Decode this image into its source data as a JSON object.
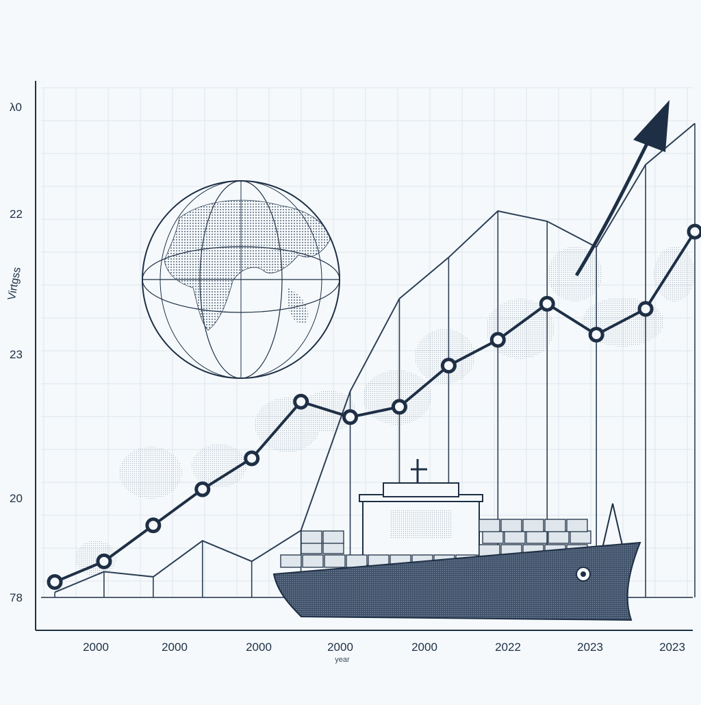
{
  "chart_data": {
    "type": "line",
    "title": "",
    "xlabel": "year",
    "ylabel": "Virtgss",
    "y_tick_labels": [
      "λ0",
      "22",
      "23",
      "20",
      "78"
    ],
    "x_tick_labels": [
      "2000",
      "2000",
      "2000",
      "2000",
      "2000",
      "2022",
      "2023",
      "2023"
    ],
    "grid": true,
    "legend": "none",
    "x": [
      1,
      2,
      3,
      4,
      5,
      6,
      7,
      8,
      9,
      10,
      11,
      12,
      13,
      14
    ],
    "ylim": [
      0,
      100
    ],
    "series": [
      {
        "values": [
          3,
          7,
          14,
          21,
          27,
          38,
          35,
          37,
          45,
          50,
          57,
          51,
          56,
          71
        ]
      },
      {
        "values": [
          1,
          5,
          4,
          11,
          7,
          13,
          40,
          58,
          66,
          75,
          73,
          68,
          84,
          92
        ]
      }
    ],
    "colors": {
      "primary": "#1e2f45",
      "secondary": "#2c3e55",
      "grid": "#dde5ec",
      "axis": "#1e2f45",
      "background": "#f5f9fb"
    }
  }
}
